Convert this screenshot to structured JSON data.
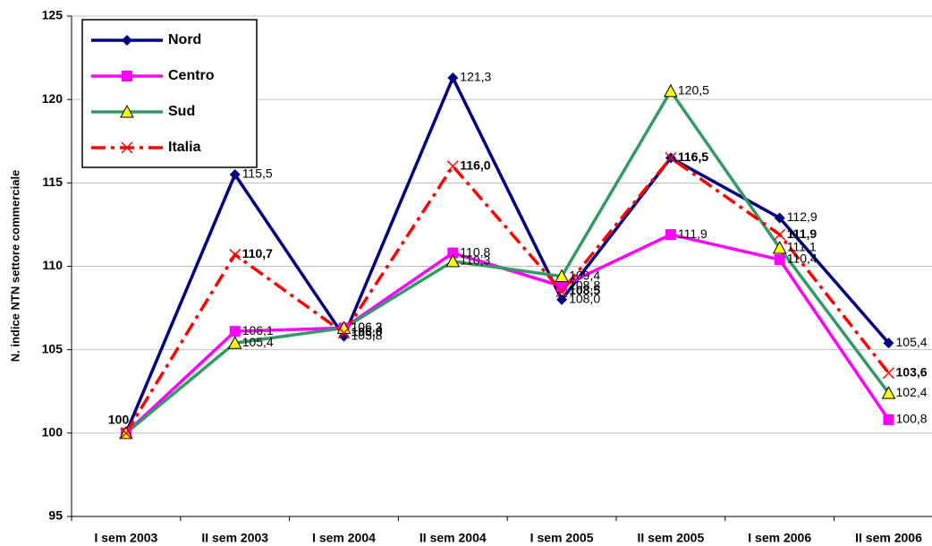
{
  "chart_data": {
    "type": "line",
    "y_label": "N. indice NTN settore commerciale",
    "categories": [
      "I sem 2003",
      "II sem 2003",
      "I sem 2004",
      "II sem 2004",
      "I sem 2005",
      "II sem 2005",
      "I sem 2006",
      "II sem 2006"
    ],
    "ylim": [
      95,
      125
    ],
    "yticks": [
      95,
      100,
      105,
      110,
      115,
      120,
      125
    ],
    "grid": true,
    "legend": "top-left",
    "series": [
      {
        "name": "Nord",
        "color": "#000080",
        "marker": "diamond",
        "line_style": "solid",
        "label_bold": false,
        "values": [
          100,
          115.5,
          105.8,
          121.3,
          108.0,
          116.5,
          112.9,
          105.4
        ],
        "value_labels": [
          null,
          "115,5",
          "105,8",
          "121,3",
          "108,0",
          "116,5",
          "112,9",
          "105,4"
        ]
      },
      {
        "name": "Centro",
        "color": "#ff00ff",
        "marker": "square",
        "line_style": "solid",
        "label_bold": false,
        "values": [
          100,
          106.1,
          106.3,
          110.8,
          108.8,
          111.9,
          110.4,
          100.8
        ],
        "value_labels": [
          null,
          "106,1",
          "106,3",
          "110,8",
          "108,8",
          "111,9",
          "110,4",
          "100,8"
        ]
      },
      {
        "name": "Sud",
        "color": "#339966",
        "marker": "triangle",
        "line_style": "solid",
        "label_bold": false,
        "values": [
          100,
          105.4,
          106.3,
          110.3,
          109.4,
          120.5,
          111.1,
          102.4
        ],
        "value_labels": [
          null,
          "105,4",
          "106,3",
          "110,3",
          "109,4",
          "120,5",
          "111,1",
          "102,4"
        ]
      },
      {
        "name": "Italia",
        "color": "#ff0000",
        "marker": "x",
        "line_style": "dashdot",
        "label_bold": true,
        "values": [
          100,
          110.7,
          106.0,
          116.0,
          108.5,
          116.5,
          111.9,
          103.6
        ],
        "value_labels": [
          "100",
          "110,7",
          "106,0",
          "116,0",
          "108,5",
          "116,5",
          "111,9",
          "103,6"
        ]
      }
    ]
  }
}
